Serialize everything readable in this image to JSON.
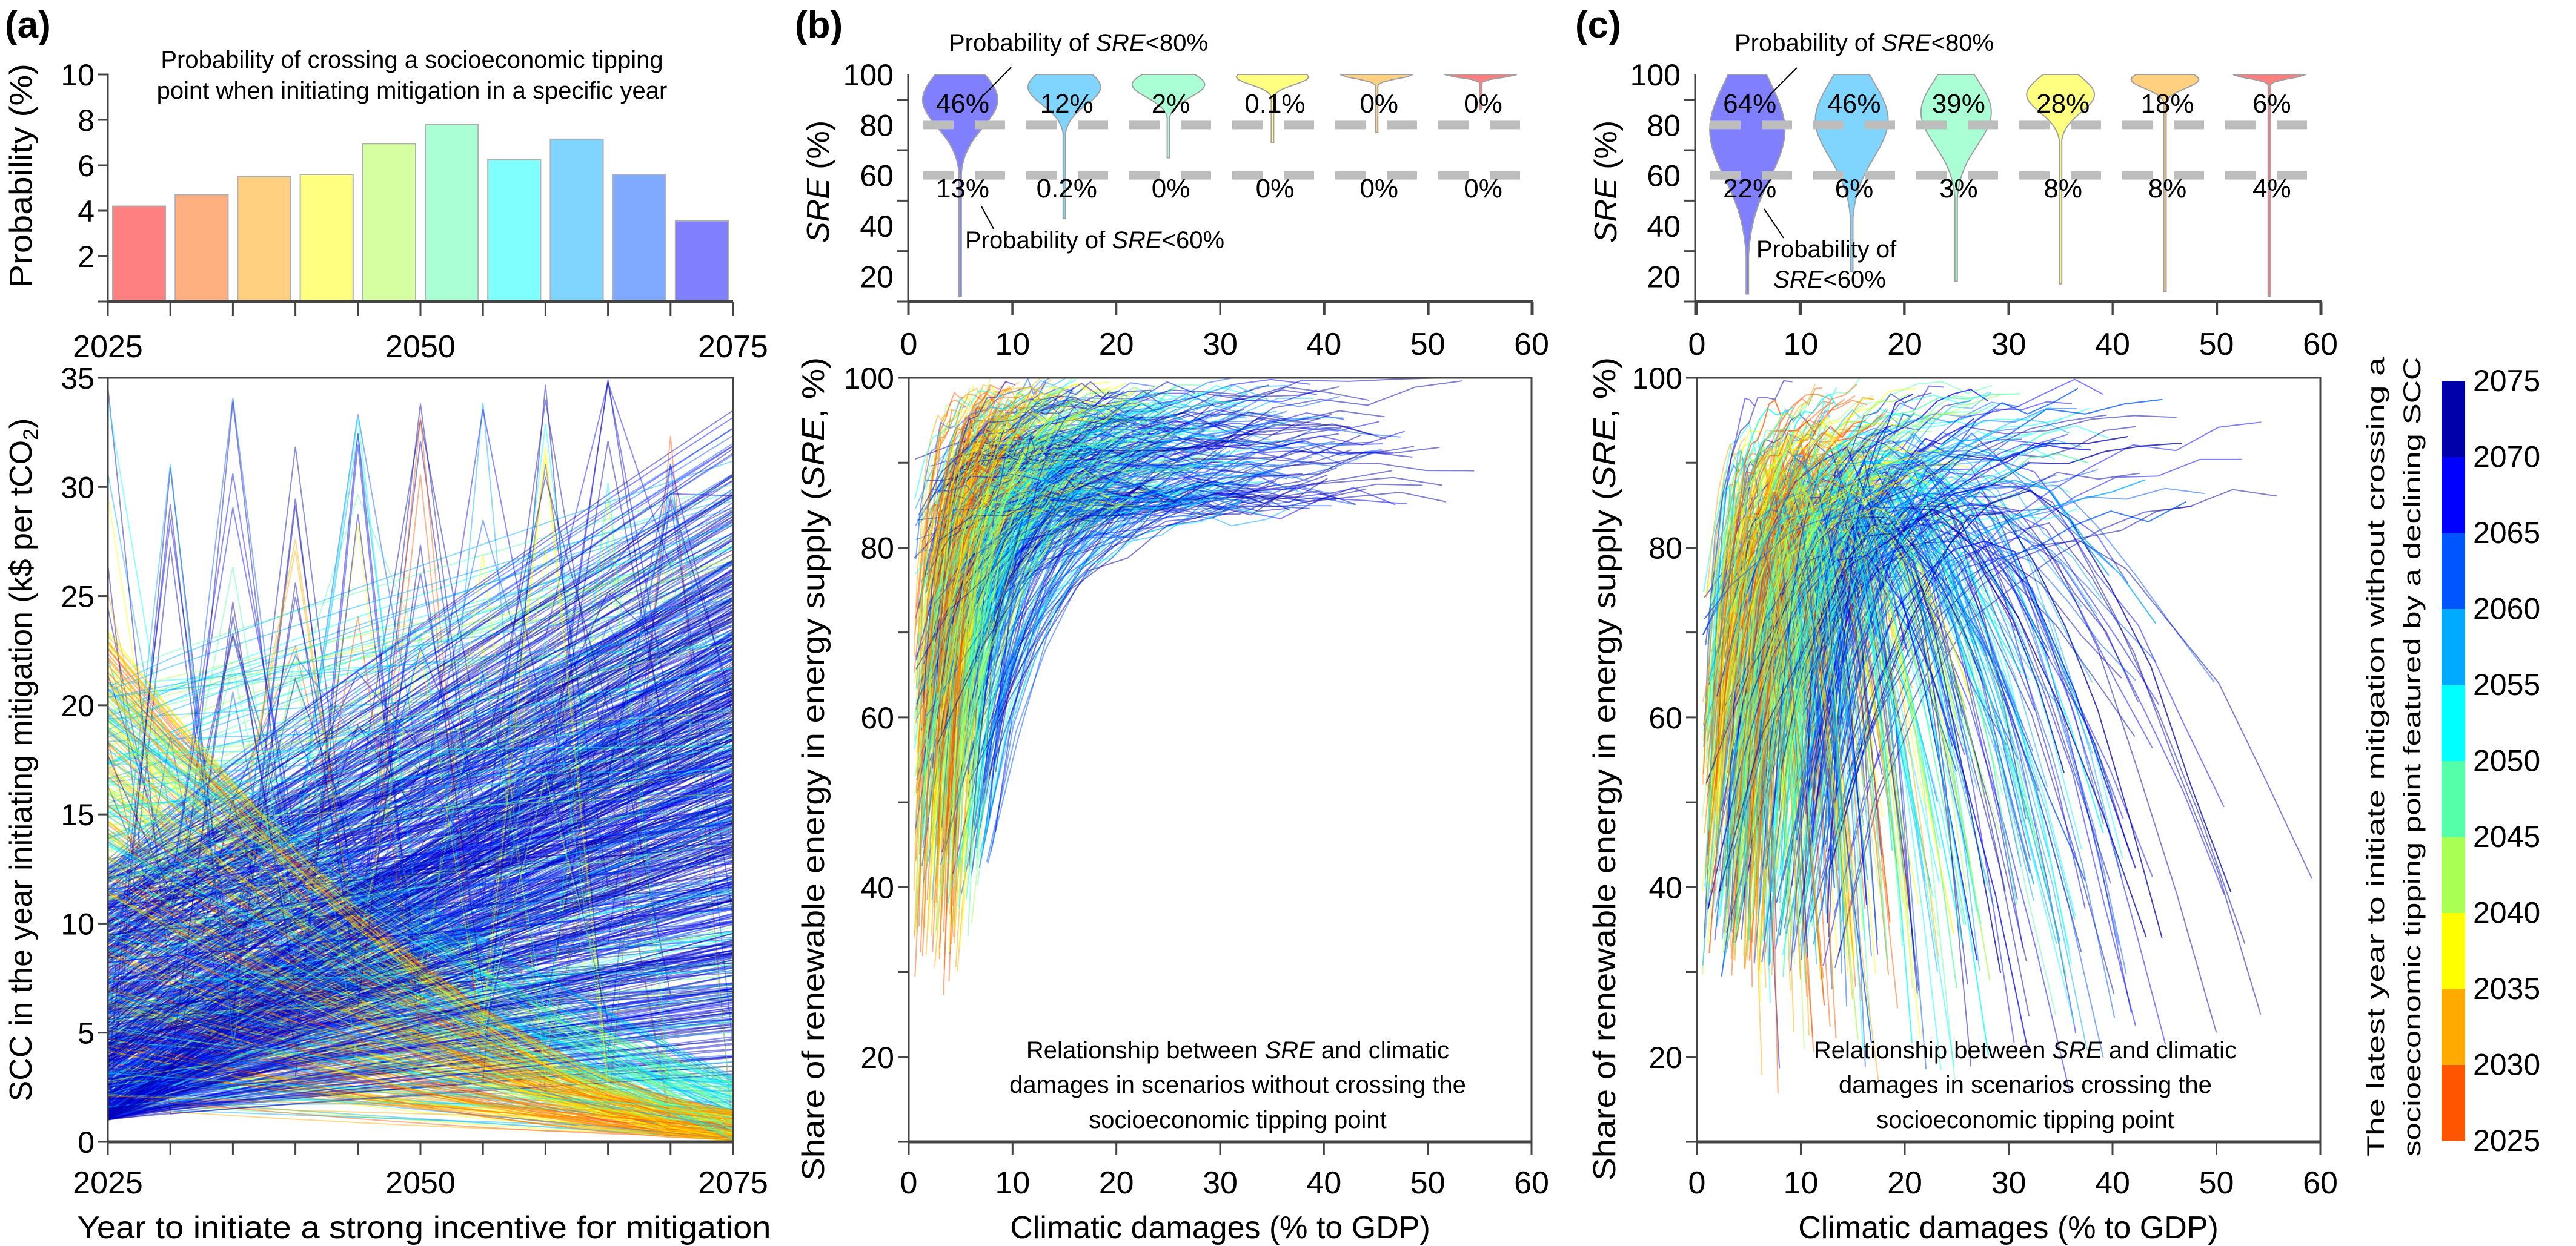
{
  "panel_labels": {
    "a": "(a)",
    "b": "(b)",
    "c": "(c)"
  },
  "colormap": {
    "title_line1": "The latest year to initiate mitigation without crossing a",
    "title_line2": "socioeconomic tipping point featured by a declining SCC",
    "ticks": [
      "2025",
      "2030",
      "2035",
      "2040",
      "2045",
      "2050",
      "2055",
      "2060",
      "2065",
      "2070",
      "2075"
    ],
    "colors": [
      "#FF5500",
      "#FFAA00",
      "#FFFF00",
      "#AAFF55",
      "#55FFAA",
      "#00FFFF",
      "#00AAFF",
      "#0055FF",
      "#0000FF",
      "#0000AA"
    ]
  },
  "chart_data": [
    {
      "id": "a-top",
      "type": "bar",
      "title_line1": "Probability of crossing a socioeconomic tipping",
      "title_line2": "point when initiating mitigation in a specific year",
      "ylabel": "Probability (%)",
      "ylim": [
        0,
        10
      ],
      "yticks": [
        "2",
        "4",
        "6",
        "8",
        "10"
      ],
      "xlim": [
        2025,
        2075
      ],
      "xticks": [
        "2025",
        "2050",
        "2075"
      ],
      "bin_starts": [
        2025,
        2030,
        2035,
        2040,
        2045,
        2050,
        2055,
        2060,
        2065,
        2070
      ],
      "values": [
        4.2,
        4.7,
        5.5,
        5.6,
        6.95,
        7.8,
        6.25,
        7.15,
        5.6,
        3.55
      ],
      "colors": [
        "#FF8080",
        "#FFB080",
        "#FFD080",
        "#FFFF80",
        "#D5FFA0",
        "#AAFFD5",
        "#80FFFF",
        "#80D5FF",
        "#80AAFF",
        "#8080FF"
      ]
    },
    {
      "id": "a-bottom",
      "type": "line",
      "xlabel": "Year to initiate a strong incentive for mitigation",
      "ylabel_main": "SCC in the year initiating mitigation (k$ per tCO",
      "ylabel_sub": "2",
      "ylabel_end": ")",
      "xlim": [
        2025,
        2075
      ],
      "ylim": [
        0,
        35
      ],
      "xticks": [
        "2025",
        "2050",
        "2075"
      ],
      "yticks": [
        "0",
        "5",
        "10",
        "15",
        "20",
        "25",
        "30",
        "35"
      ],
      "color_by": "colormap"
    },
    {
      "id": "b-top",
      "type": "violin",
      "ylabel_it": "SRE",
      "ylabel_rest": " (%)",
      "xlim": [
        0,
        60
      ],
      "ylim": [
        10,
        100
      ],
      "yticks": [
        "20",
        "40",
        "60",
        "80",
        "100"
      ],
      "thresholds": [
        80,
        60
      ],
      "positions": [
        5,
        15,
        25,
        35,
        45,
        55
      ],
      "colors": [
        "#8080FF",
        "#80D5FF",
        "#AAFFD5",
        "#FFFF80",
        "#FFD080",
        "#FF8080"
      ],
      "prob_below_80": [
        "46%",
        "12%",
        "2%",
        "0.1%",
        "0%",
        "0%"
      ],
      "prob_below_60": [
        "13%",
        "0.2%",
        "0%",
        "0%",
        "0%",
        "0%"
      ],
      "min_sre": [
        12,
        43,
        67,
        73,
        77,
        86
      ],
      "annot80": {
        "pre": "Probability of ",
        "it": "SRE",
        "post": "<80%"
      },
      "annot60": {
        "pre": "Probability of ",
        "it": "SRE",
        "post": "<60%"
      }
    },
    {
      "id": "b-bottom",
      "type": "line",
      "xlabel": "Climatic damages (% to GDP)",
      "ylabel_pre": "Share of renewable energy in energy supply (",
      "ylabel_it": "SRE",
      "ylabel_post": ", %)",
      "xlim": [
        0,
        60
      ],
      "ylim": [
        10,
        100
      ],
      "xticks": [
        "0",
        "10",
        "20",
        "30",
        "40",
        "50",
        "60"
      ],
      "yticks": [
        "20",
        "40",
        "60",
        "80",
        "100"
      ],
      "note_l1_pre": "Relationship between ",
      "note_l1_it": "SRE",
      "note_l1_post": " and climatic",
      "note_l2": "damages in scenarios without crossing the",
      "note_l3": "socioeconomic tipping point",
      "color_by": "colormap"
    },
    {
      "id": "c-top",
      "type": "violin",
      "ylabel_it": "SRE",
      "ylabel_rest": " (%)",
      "xlim": [
        0,
        60
      ],
      "ylim": [
        10,
        100
      ],
      "yticks": [
        "20",
        "40",
        "60",
        "80",
        "100"
      ],
      "thresholds": [
        80,
        60
      ],
      "positions": [
        5,
        15,
        25,
        35,
        45,
        55
      ],
      "colors": [
        "#8080FF",
        "#80D5FF",
        "#AAFFD5",
        "#FFFF80",
        "#FFD080",
        "#FF8080"
      ],
      "prob_below_80": [
        "64%",
        "46%",
        "39%",
        "28%",
        "18%",
        "6%"
      ],
      "prob_below_60": [
        "22%",
        "6%",
        "3%",
        "8%",
        "8%",
        "4%"
      ],
      "min_sre": [
        13,
        22,
        18,
        17,
        14,
        12
      ],
      "annot80": {
        "pre": "Probability of ",
        "it": "SRE",
        "post": "<80%"
      },
      "annot60": {
        "line1": "Probability of",
        "it": "SRE",
        "post": "<60%"
      }
    },
    {
      "id": "c-bottom",
      "type": "line",
      "xlabel": "Climatic damages (% to GDP)",
      "ylabel_pre": "Share of renewable energy in energy supply (",
      "ylabel_it": "SRE",
      "ylabel_post": ", %)",
      "xlim": [
        0,
        60
      ],
      "ylim": [
        10,
        100
      ],
      "xticks": [
        "0",
        "10",
        "20",
        "30",
        "40",
        "50",
        "60"
      ],
      "yticks": [
        "20",
        "40",
        "60",
        "80",
        "100"
      ],
      "note_l1_pre": "Relationship between ",
      "note_l1_it": "SRE",
      "note_l1_post": " and climatic",
      "note_l2": "damages in scenarios crossing the",
      "note_l3": "socioeconomic tipping point",
      "color_by": "colormap"
    }
  ]
}
